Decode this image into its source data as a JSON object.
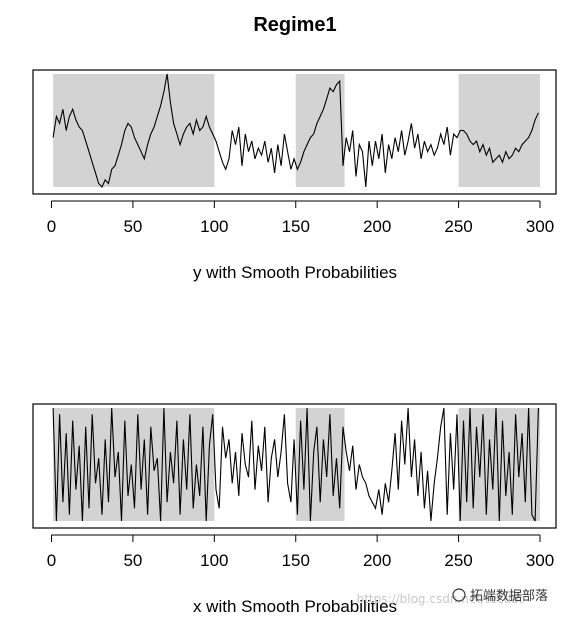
{
  "figure_title": "Regime1",
  "watermark": {
    "text": "拓端数据部落",
    "faint_text": "https://blog.csdn.net/tecdat"
  },
  "chart_data": [
    {
      "type": "line",
      "xlabel": "y with Smooth Probabilities",
      "ylabel": "",
      "xlim": [
        0,
        300
      ],
      "xticks": [
        0,
        50,
        100,
        150,
        200,
        250,
        300
      ],
      "regime_shading": [
        [
          1,
          100
        ],
        [
          150,
          180
        ],
        [
          250,
          300
        ]
      ],
      "shading_color": "#d3d3d3",
      "series": [
        {
          "x": [
            1,
            3,
            5,
            7,
            9,
            11,
            13,
            15,
            17,
            19,
            21,
            23,
            25,
            27,
            29,
            31,
            33,
            35,
            37,
            39,
            41,
            43,
            45,
            47,
            49,
            51,
            53,
            55,
            57,
            59,
            61,
            63,
            65,
            67,
            69,
            71,
            73,
            75,
            77,
            79,
            81,
            83,
            85,
            87,
            89,
            91,
            93,
            95,
            97,
            99,
            101,
            103,
            105,
            107,
            109,
            111,
            113,
            115,
            117,
            119,
            121,
            123,
            125,
            127,
            129,
            131,
            133,
            135,
            137,
            139,
            141,
            143,
            145,
            147,
            149,
            151,
            153,
            155,
            157,
            159,
            161,
            163,
            165,
            167,
            169,
            171,
            173,
            175,
            177,
            179,
            181,
            183,
            185,
            187,
            189,
            191,
            193,
            195,
            197,
            199,
            201,
            203,
            205,
            207,
            209,
            211,
            213,
            215,
            217,
            219,
            221,
            223,
            225,
            227,
            229,
            231,
            233,
            235,
            237,
            239,
            241,
            243,
            245,
            247,
            249,
            251,
            253,
            255,
            257,
            259,
            261,
            263,
            265,
            267,
            269,
            271,
            273,
            275,
            277,
            279,
            281,
            283,
            285,
            287,
            289,
            291,
            293,
            295,
            297,
            299
          ],
          "values": [
            0.4,
            0.7,
            0.6,
            0.8,
            0.5,
            0.7,
            0.8,
            0.65,
            0.55,
            0.5,
            0.35,
            0.2,
            0.05,
            -0.1,
            -0.25,
            -0.3,
            -0.2,
            -0.25,
            -0.05,
            0.0,
            0.15,
            0.3,
            0.5,
            0.6,
            0.55,
            0.4,
            0.3,
            0.2,
            0.1,
            0.3,
            0.45,
            0.55,
            0.7,
            0.85,
            1.05,
            1.3,
            0.9,
            0.6,
            0.45,
            0.3,
            0.45,
            0.55,
            0.6,
            0.45,
            0.65,
            0.5,
            0.55,
            0.7,
            0.55,
            0.45,
            0.35,
            0.2,
            0.05,
            -0.05,
            0.1,
            0.5,
            0.3,
            0.55,
            0.0,
            0.45,
            0.2,
            0.35,
            0.1,
            0.25,
            0.15,
            0.35,
            0.05,
            0.25,
            -0.1,
            0.3,
            0.0,
            0.45,
            0.2,
            -0.05,
            0.1,
            -0.05,
            0.05,
            0.2,
            0.3,
            0.4,
            0.45,
            0.6,
            0.7,
            0.8,
            0.95,
            1.1,
            1.05,
            1.15,
            1.2,
            0.0,
            0.4,
            0.2,
            0.5,
            -0.15,
            0.3,
            0.2,
            -0.3,
            0.35,
            0.0,
            0.35,
            0.1,
            0.45,
            -0.1,
            0.3,
            0.1,
            0.4,
            0.2,
            0.5,
            0.15,
            0.35,
            0.6,
            0.25,
            0.45,
            0.1,
            0.35,
            0.2,
            0.3,
            0.15,
            0.25,
            0.45,
            0.3,
            0.55,
            0.15,
            0.45,
            0.4,
            0.5,
            0.5,
            0.45,
            0.35,
            0.3,
            0.35,
            0.2,
            0.3,
            0.15,
            0.25,
            0.05,
            0.1,
            0.15,
            0.05,
            0.2,
            0.1,
            0.15,
            0.25,
            0.2,
            0.3,
            0.35,
            0.4,
            0.5,
            0.65,
            0.75
          ]
        }
      ]
    },
    {
      "type": "line",
      "xlabel": "x with Smooth Probabilities",
      "ylabel": "",
      "xlim": [
        0,
        300
      ],
      "xticks": [
        0,
        50,
        100,
        150,
        200,
        250,
        300
      ],
      "regime_shading": [
        [
          1,
          100
        ],
        [
          150,
          180
        ],
        [
          250,
          300
        ]
      ],
      "shading_color": "#d3d3d3",
      "series": [
        {
          "x": [
            1,
            3,
            5,
            7,
            9,
            11,
            13,
            15,
            17,
            19,
            21,
            23,
            25,
            27,
            29,
            31,
            33,
            35,
            37,
            39,
            41,
            43,
            45,
            47,
            49,
            51,
            53,
            55,
            57,
            59,
            61,
            63,
            65,
            67,
            69,
            71,
            73,
            75,
            77,
            79,
            81,
            83,
            85,
            87,
            89,
            91,
            93,
            95,
            97,
            99,
            101,
            103,
            105,
            107,
            109,
            111,
            113,
            115,
            117,
            119,
            121,
            123,
            125,
            127,
            129,
            131,
            133,
            135,
            137,
            139,
            141,
            143,
            145,
            147,
            149,
            151,
            153,
            155,
            157,
            159,
            161,
            163,
            165,
            167,
            169,
            171,
            173,
            175,
            177,
            179,
            181,
            183,
            185,
            187,
            189,
            191,
            193,
            195,
            197,
            199,
            201,
            203,
            205,
            207,
            209,
            211,
            213,
            215,
            217,
            219,
            221,
            223,
            225,
            227,
            229,
            231,
            233,
            235,
            237,
            239,
            241,
            243,
            245,
            247,
            249,
            251,
            253,
            255,
            257,
            259,
            261,
            263,
            265,
            267,
            269,
            271,
            273,
            275,
            277,
            279,
            281,
            283,
            285,
            287,
            289,
            291,
            293,
            295,
            297,
            299
          ],
          "values": [
            0.95,
            0.05,
            0.9,
            0.2,
            0.75,
            0.1,
            0.85,
            0.3,
            0.65,
            0.05,
            0.8,
            0.15,
            0.9,
            0.35,
            0.55,
            0.1,
            0.7,
            0.2,
            0.95,
            0.4,
            0.6,
            0.05,
            0.85,
            0.25,
            0.5,
            0.15,
            0.9,
            0.3,
            0.7,
            0.1,
            0.8,
            0.45,
            0.55,
            0.05,
            0.95,
            0.2,
            0.6,
            0.35,
            0.85,
            0.1,
            0.7,
            0.3,
            0.9,
            0.15,
            0.5,
            0.25,
            0.8,
            0.05,
            0.65,
            0.9,
            0.3,
            0.15,
            0.8,
            0.55,
            0.7,
            0.35,
            0.6,
            0.25,
            0.75,
            0.5,
            0.4,
            0.85,
            0.3,
            0.65,
            0.45,
            0.8,
            0.2,
            0.55,
            0.7,
            0.4,
            0.6,
            0.9,
            0.35,
            0.2,
            0.7,
            0.1,
            0.85,
            0.3,
            0.95,
            0.05,
            0.6,
            0.8,
            0.2,
            0.7,
            0.4,
            0.9,
            0.25,
            0.55,
            0.15,
            0.8,
            0.6,
            0.45,
            0.65,
            0.3,
            0.5,
            0.4,
            0.35,
            0.25,
            0.2,
            0.15,
            0.3,
            0.1,
            0.35,
            0.2,
            0.45,
            0.75,
            0.3,
            0.85,
            0.5,
            0.95,
            0.4,
            0.7,
            0.25,
            0.6,
            0.15,
            0.45,
            0.05,
            0.35,
            0.55,
            0.8,
            0.95,
            0.1,
            0.75,
            0.3,
            0.9,
            0.05,
            0.85,
            0.2,
            0.95,
            0.15,
            0.8,
            0.4,
            0.9,
            0.1,
            0.7,
            0.3,
            0.95,
            0.05,
            0.85,
            0.25,
            0.6,
            0.1,
            0.9,
            0.4,
            0.75,
            0.2,
            0.95,
            0.1,
            0.05,
            0.95
          ]
        }
      ]
    }
  ]
}
